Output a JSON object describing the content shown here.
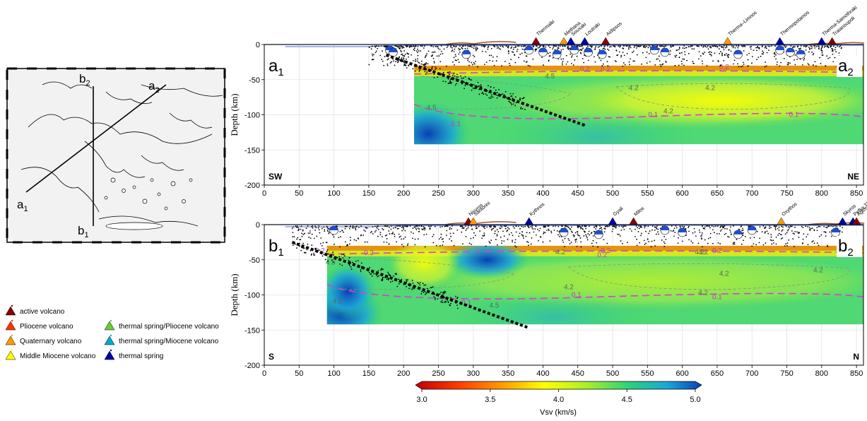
{
  "map_inset": {
    "labels": {
      "a1": "a",
      "a1_sub": "1",
      "a2": "a",
      "a2_sub": "2",
      "b1": "b",
      "b1_sub": "1",
      "b2": "b",
      "b2_sub": "2"
    }
  },
  "legend": {
    "items": [
      {
        "label": "active volcano",
        "color": "#8b0000"
      },
      {
        "label": "Pliocene volcano",
        "color": "#ff3300"
      },
      {
        "label": "Quaternary volcano",
        "color": "#ff9900"
      },
      {
        "label": "Middle Miocene volcano",
        "color": "#ffff00"
      },
      {
        "label": "thermal spring/Pliocene volcano",
        "color": "#66cc33"
      },
      {
        "label": "thermal spring/Miocene volcano",
        "color": "#00aacc"
      },
      {
        "label": "thermal spring",
        "color": "#0000aa"
      }
    ]
  },
  "colorbar": {
    "label": "Vsv (km/s)",
    "ticks": [
      "3.0",
      "3.5",
      "4.0",
      "4.5",
      "5.0"
    ],
    "colors": [
      "#c00000",
      "#ff3b00",
      "#ff9a00",
      "#ffff00",
      "#a8ef2a",
      "#28d17c",
      "#1ca7d8",
      "#0a3fb5"
    ]
  },
  "chart_data": [
    {
      "type": "heatmap",
      "panel": "a",
      "start_label": "a",
      "start_sub": "1",
      "end_label": "a",
      "end_sub": "2",
      "left_dir": "SW",
      "right_dir": "NE",
      "ylabel": "Depth (km)",
      "xlim": [
        0,
        860
      ],
      "ylim": [
        -200,
        0
      ],
      "x_ticks": [
        "0",
        "50",
        "100",
        "150",
        "200",
        "250",
        "300",
        "350",
        "400",
        "450",
        "500",
        "550",
        "600",
        "650",
        "700",
        "750",
        "800",
        "850"
      ],
      "y_ticks": [
        "0",
        "-50",
        "-100",
        "-150",
        "-200"
      ],
      "model_extent_x": [
        215,
        860
      ],
      "model_extent_depth": [
        -30,
        -142
      ],
      "slab_line": {
        "x": [
          175,
          460
        ],
        "depth": [
          -15,
          -115
        ]
      },
      "contour_labels": [
        {
          "text": "4.5",
          "x": 410,
          "depth": -48
        },
        {
          "text": "0.2",
          "x": 460,
          "depth": -38
        },
        {
          "text": "0.2",
          "x": 490,
          "depth": -38
        },
        {
          "text": "4.2",
          "x": 530,
          "depth": -65
        },
        {
          "text": "4.2",
          "x": 640,
          "depth": -65
        },
        {
          "text": "4.2",
          "x": 580,
          "depth": -98
        },
        {
          "text": "4.5",
          "x": 240,
          "depth": -93
        },
        {
          "text": "0.1",
          "x": 275,
          "depth": -116
        },
        {
          "text": "0.1",
          "x": 558,
          "depth": -103
        },
        {
          "text": "0.1",
          "x": 760,
          "depth": -103
        },
        {
          "text": "0.2",
          "x": 660,
          "depth": -35
        }
      ],
      "stations": [
        "Thermaiki",
        "Methana",
        "Sousaki",
        "Loutraki",
        "Aidipsos",
        "Therma–Limnos",
        "Thermopotamos",
        "Therma-Samothraki",
        "Traianoupoli"
      ],
      "station_x": [
        390,
        430,
        440,
        460,
        490,
        665,
        740,
        800,
        815
      ]
    },
    {
      "type": "heatmap",
      "panel": "b",
      "start_label": "b",
      "start_sub": "1",
      "end_label": "b",
      "end_sub": "2",
      "left_dir": "S",
      "right_dir": "N",
      "ylabel": "Depth (km)",
      "xlim": [
        0,
        860
      ],
      "ylim": [
        -200,
        0
      ],
      "x_ticks": [
        "0",
        "50",
        "100",
        "150",
        "200",
        "250",
        "300",
        "350",
        "400",
        "450",
        "500",
        "550",
        "600",
        "650",
        "700",
        "750",
        "800",
        "850"
      ],
      "y_ticks": [
        "0",
        "-50",
        "-100",
        "-150",
        "-200"
      ],
      "model_extent_x": [
        90,
        860
      ],
      "model_extent_depth": [
        -30,
        -142
      ],
      "slab_line": {
        "x": [
          40,
          380
        ],
        "depth": [
          -25,
          -147
        ]
      },
      "contour_labels": [
        {
          "text": "0.2",
          "x": 80,
          "depth": -40
        },
        {
          "text": "0.2",
          "x": 150,
          "depth": -43
        },
        {
          "text": "4.5",
          "x": 95,
          "depth": -57
        },
        {
          "text": "4.5",
          "x": 105,
          "depth": -112
        },
        {
          "text": "0.1",
          "x": 290,
          "depth": -114
        },
        {
          "text": "4.5",
          "x": 330,
          "depth": -118
        },
        {
          "text": "4.2",
          "x": 425,
          "depth": -42
        },
        {
          "text": "0.2",
          "x": 490,
          "depth": -40
        },
        {
          "text": "0.2",
          "x": 485,
          "depth": -46
        },
        {
          "text": "4.2",
          "x": 625,
          "depth": -42
        },
        {
          "text": "4.2",
          "x": 660,
          "depth": -73
        },
        {
          "text": "4.2",
          "x": 795,
          "depth": -68
        },
        {
          "text": "4.2",
          "x": 437,
          "depth": -92
        },
        {
          "text": "0.1",
          "x": 448,
          "depth": -103
        },
        {
          "text": "4.2",
          "x": 630,
          "depth": -100
        },
        {
          "text": "0.1",
          "x": 650,
          "depth": -106
        },
        {
          "text": "4.2",
          "x": 630,
          "depth": -42
        },
        {
          "text": "0.2",
          "x": 650,
          "depth": -40
        }
      ],
      "stations": [
        "Nisyros",
        "Santorini",
        "Kythnos",
        "Gyali",
        "Milos",
        "Oxythos",
        "Skyros",
        "Pefka Therma",
        "Agios Nikolaos"
      ],
      "station_x": [
        293,
        300,
        380,
        500,
        530,
        742,
        830,
        845,
        850
      ]
    }
  ]
}
